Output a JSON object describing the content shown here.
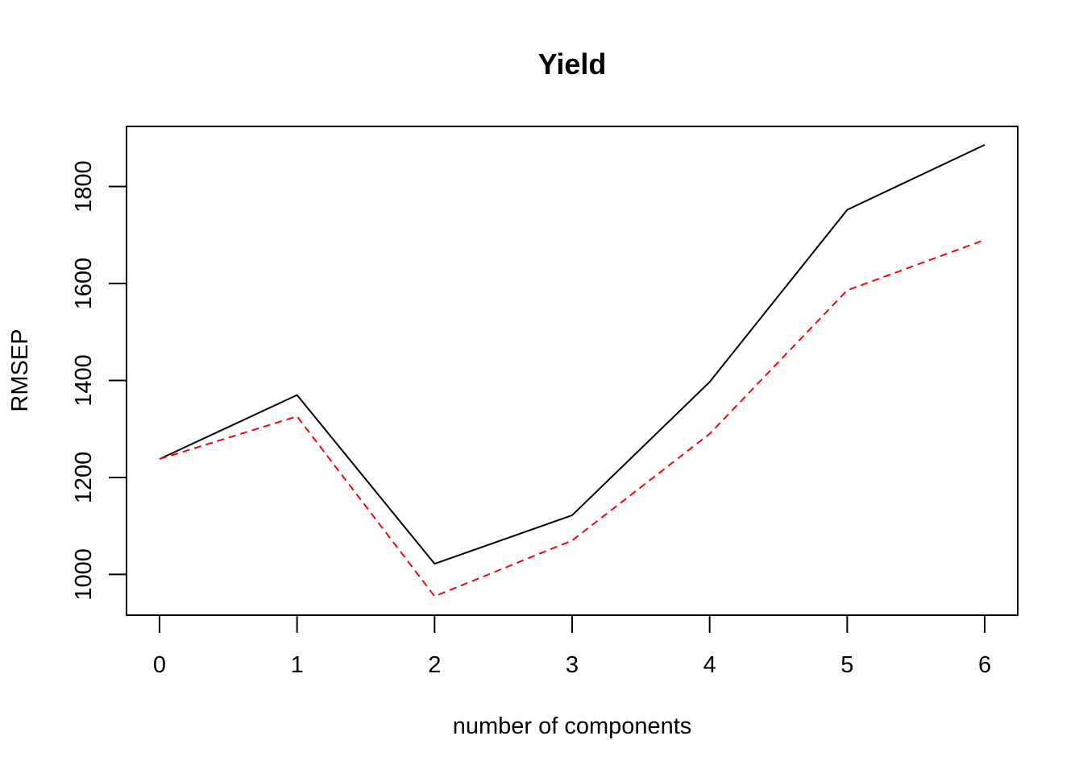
{
  "chart_data": {
    "type": "line",
    "title": "Yield",
    "xlabel": "number of components",
    "ylabel": "RMSEP",
    "x": [
      0,
      1,
      2,
      3,
      4,
      5,
      6
    ],
    "xticks": [
      "0",
      "1",
      "2",
      "3",
      "4",
      "5",
      "6"
    ],
    "yticks": [
      "1000",
      "1200",
      "1400",
      "1600",
      "1800"
    ],
    "xlim": [
      -0.24,
      6.24
    ],
    "ylim": [
      916,
      1924
    ],
    "grid": false,
    "series": [
      {
        "values": [
          1238,
          1370,
          1022,
          1122,
          1397,
          1752,
          1886
        ],
        "color": "#000000",
        "line_style": "solid"
      },
      {
        "values": [
          1238,
          1326,
          955,
          1070,
          1290,
          1586,
          1690
        ],
        "color": "#ff0000",
        "line_style": "dashed"
      }
    ]
  }
}
